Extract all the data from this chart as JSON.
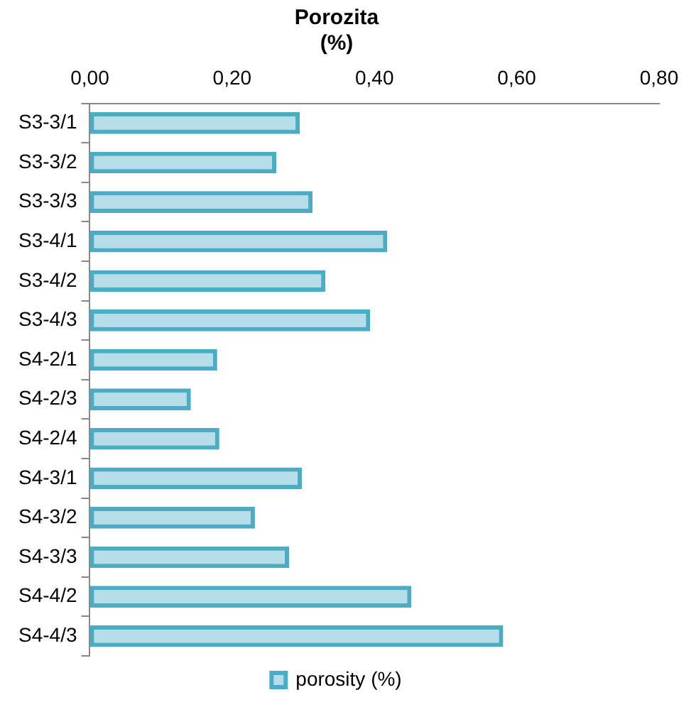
{
  "chart_data": {
    "type": "bar",
    "orientation": "horizontal",
    "title": "Porozita (%)",
    "categories": [
      "S3-3/1",
      "S3-3/2",
      "S3-3/3",
      "S3-4/1",
      "S3-4/2",
      "S3-4/3",
      "S4-2/1",
      "S4-2/3",
      "S4-2/4",
      "S4-3/1",
      "S4-3/2",
      "S4-3/3",
      "S4-4/2",
      "S4-4/3"
    ],
    "series": [
      {
        "name": "porosity (%)",
        "color": "#4bacc6",
        "values": [
          0.295,
          0.262,
          0.313,
          0.418,
          0.331,
          0.394,
          0.179,
          0.142,
          0.182,
          0.298,
          0.232,
          0.28,
          0.452,
          0.581
        ]
      }
    ],
    "xlim": [
      0,
      0.8
    ],
    "xticks": [
      {
        "value": 0,
        "label": "0,00"
      },
      {
        "value": 0.2,
        "label": "0,20"
      },
      {
        "value": 0.4,
        "label": "0,40"
      },
      {
        "value": 0.6,
        "label": "0,60"
      },
      {
        "value": 0.8,
        "label": "0,80"
      }
    ],
    "grid": false,
    "legend": "bottom"
  }
}
